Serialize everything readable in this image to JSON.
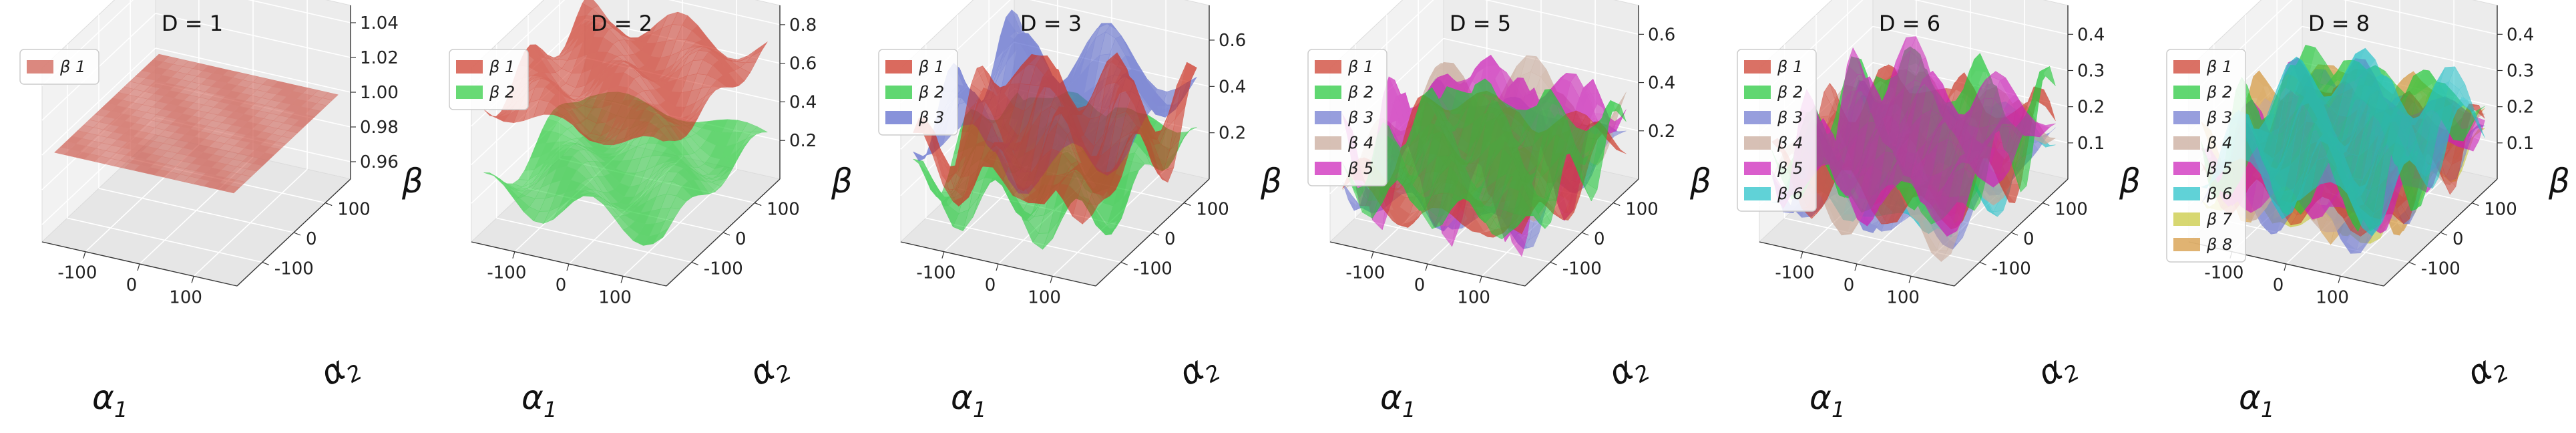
{
  "chart_data": [
    {
      "type": "surface3d",
      "title": "D = 1",
      "xlabel": "α",
      "xlabel_sub": "1",
      "ylabel": "α",
      "ylabel_sub": "2",
      "zlabel": "β",
      "xlim": [
        -180,
        180
      ],
      "ylim": [
        -180,
        180
      ],
      "zlim": [
        0.95,
        1.05
      ],
      "x_ticks": [
        -100,
        0,
        100
      ],
      "y_ticks": [
        -100,
        0,
        100
      ],
      "z_ticks": [
        0.96,
        0.98,
        1.0,
        1.02,
        1.04
      ],
      "z_tick_labels": [
        "0.96",
        "0.98",
        "1.00",
        "1.02",
        "1.04"
      ],
      "legend_position": "top-left",
      "series": [
        {
          "name": "β 1",
          "base": 1.0,
          "amp": 0.0,
          "color": "#cd5a4e",
          "fx": 0,
          "fy": 0,
          "phase": 0
        }
      ]
    },
    {
      "type": "surface3d",
      "title": "D = 2",
      "xlabel": "α",
      "xlabel_sub": "1",
      "ylabel": "α",
      "ylabel_sub": "2",
      "zlabel": "β",
      "xlim": [
        -180,
        180
      ],
      "ylim": [
        -180,
        180
      ],
      "zlim": [
        0.0,
        0.9
      ],
      "x_ticks": [
        -100,
        0,
        100
      ],
      "y_ticks": [
        -100,
        0,
        100
      ],
      "z_ticks": [
        0.2,
        0.4,
        0.6,
        0.8
      ],
      "z_tick_labels": [
        "0.2",
        "0.4",
        "0.6",
        "0.8"
      ],
      "legend_position": "top-left",
      "series": [
        {
          "name": "β 2",
          "base": 0.25,
          "amp": 0.12,
          "color": "#2ecc40",
          "fx": 2.0,
          "fy": 1.5,
          "phase": 0.6
        },
        {
          "name": "β 1",
          "base": 0.68,
          "amp": 0.12,
          "color": "#cd3a2a",
          "fx": 1.8,
          "fy": 2.2,
          "phase": 1.7
        }
      ]
    },
    {
      "type": "surface3d",
      "title": "D = 3",
      "xlabel": "α",
      "xlabel_sub": "1",
      "ylabel": "α",
      "ylabel_sub": "2",
      "zlabel": "β",
      "xlim": [
        -180,
        180
      ],
      "ylim": [
        -180,
        180
      ],
      "zlim": [
        0.0,
        0.75
      ],
      "x_ticks": [
        -100,
        0,
        100
      ],
      "y_ticks": [
        -100,
        0,
        100
      ],
      "z_ticks": [
        0.2,
        0.4,
        0.6
      ],
      "z_tick_labels": [
        "0.2",
        "0.4",
        "0.6"
      ],
      "legend_position": "top-left",
      "series": [
        {
          "name": "β 2",
          "base": 0.22,
          "amp": 0.16,
          "color": "#22c83a",
          "fx": 2.5,
          "fy": 2.0,
          "phase": 0.3
        },
        {
          "name": "β 3",
          "base": 0.45,
          "amp": 0.2,
          "color": "#5a68cc",
          "fx": 1.6,
          "fy": 2.4,
          "phase": 2.1
        },
        {
          "name": "β 1",
          "base": 0.32,
          "amp": 0.22,
          "color": "#cc3020",
          "fx": 2.8,
          "fy": 1.9,
          "phase": 4.0
        }
      ]
    },
    {
      "type": "surface3d",
      "title": "D = 5",
      "xlabel": "α",
      "xlabel_sub": "1",
      "ylabel": "α",
      "ylabel_sub": "2",
      "zlabel": "β",
      "xlim": [
        -180,
        180
      ],
      "ylim": [
        -180,
        180
      ],
      "zlim": [
        0.0,
        0.72
      ],
      "x_ticks": [
        -100,
        0,
        100
      ],
      "y_ticks": [
        -100,
        0,
        100
      ],
      "z_ticks": [
        0.2,
        0.4,
        0.6
      ],
      "z_tick_labels": [
        "0.2",
        "0.4",
        "0.6"
      ],
      "legend_position": "top-left",
      "series": [
        {
          "name": "β 3",
          "base": 0.2,
          "amp": 0.14,
          "color": "#6f78d0",
          "fx": 2.2,
          "fy": 2.6,
          "phase": 1.2
        },
        {
          "name": "β 4",
          "base": 0.28,
          "amp": 0.18,
          "color": "#c8a898",
          "fx": 1.7,
          "fy": 2.1,
          "phase": 2.6
        },
        {
          "name": "β 5",
          "base": 0.3,
          "amp": 0.28,
          "color": "#cc20b8",
          "fx": 2.9,
          "fy": 2.3,
          "phase": 0.4
        },
        {
          "name": "β 1",
          "base": 0.18,
          "amp": 0.14,
          "color": "#cc3a2a",
          "fx": 2.4,
          "fy": 1.8,
          "phase": 3.5
        },
        {
          "name": "β 2",
          "base": 0.22,
          "amp": 0.17,
          "color": "#22c83a",
          "fx": 3.1,
          "fy": 2.7,
          "phase": 5.0
        }
      ]
    },
    {
      "type": "surface3d",
      "title": "D = 6",
      "xlabel": "α",
      "xlabel_sub": "1",
      "ylabel": "α",
      "ylabel_sub": "2",
      "zlabel": "β",
      "xlim": [
        -180,
        180
      ],
      "ylim": [
        -180,
        180
      ],
      "zlim": [
        0.0,
        0.48
      ],
      "x_ticks": [
        -100,
        0,
        100
      ],
      "y_ticks": [
        -100,
        0,
        100
      ],
      "z_ticks": [
        0.1,
        0.2,
        0.3,
        0.4
      ],
      "z_tick_labels": [
        "0.1",
        "0.2",
        "0.3",
        "0.4"
      ],
      "legend_position": "top-left",
      "series": [
        {
          "name": "β 3",
          "base": 0.13,
          "amp": 0.1,
          "color": "#6f78d0",
          "fx": 2.3,
          "fy": 2.8,
          "phase": 0.9
        },
        {
          "name": "β 6",
          "base": 0.14,
          "amp": 0.1,
          "color": "#22c0c8",
          "fx": 2.6,
          "fy": 2.0,
          "phase": 2.2
        },
        {
          "name": "β 4",
          "base": 0.16,
          "amp": 0.12,
          "color": "#c8a898",
          "fx": 1.9,
          "fy": 2.5,
          "phase": 3.3
        },
        {
          "name": "β 1",
          "base": 0.17,
          "amp": 0.13,
          "color": "#cc3a2a",
          "fx": 2.7,
          "fy": 2.2,
          "phase": 4.4
        },
        {
          "name": "β 2",
          "base": 0.2,
          "amp": 0.15,
          "color": "#22c83a",
          "fx": 3.0,
          "fy": 2.6,
          "phase": 5.5
        },
        {
          "name": "β 5",
          "base": 0.19,
          "amp": 0.14,
          "color": "#cc20b8",
          "fx": 2.1,
          "fy": 3.0,
          "phase": 1.4
        }
      ]
    },
    {
      "type": "surface3d",
      "title": "D = 8",
      "xlabel": "α",
      "xlabel_sub": "1",
      "ylabel": "α",
      "ylabel_sub": "2",
      "zlabel": "β",
      "xlim": [
        -180,
        180
      ],
      "ylim": [
        -180,
        180
      ],
      "zlim": [
        0.0,
        0.48
      ],
      "x_ticks": [
        -100,
        0,
        100
      ],
      "y_ticks": [
        -100,
        0,
        100
      ],
      "z_ticks": [
        0.1,
        0.2,
        0.3,
        0.4
      ],
      "z_tick_labels": [
        "0.1",
        "0.2",
        "0.3",
        "0.4"
      ],
      "legend_position": "top-left",
      "series": [
        {
          "name": "β 8",
          "base": 0.2,
          "amp": 0.16,
          "color": "#d4963c",
          "fx": 2.4,
          "fy": 2.0,
          "phase": 0.5
        },
        {
          "name": "β 7",
          "base": 0.12,
          "amp": 0.08,
          "color": "#c8c83a",
          "fx": 2.9,
          "fy": 2.4,
          "phase": 1.6
        },
        {
          "name": "β 3",
          "base": 0.13,
          "amp": 0.09,
          "color": "#6f78d0",
          "fx": 2.2,
          "fy": 2.9,
          "phase": 2.7
        },
        {
          "name": "β 4",
          "base": 0.14,
          "amp": 0.09,
          "color": "#c8a898",
          "fx": 2.6,
          "fy": 2.2,
          "phase": 3.8
        },
        {
          "name": "β 1",
          "base": 0.15,
          "amp": 0.1,
          "color": "#cc3a2a",
          "fx": 3.1,
          "fy": 2.7,
          "phase": 4.9
        },
        {
          "name": "β 5",
          "base": 0.17,
          "amp": 0.12,
          "color": "#cc20b8",
          "fx": 2.0,
          "fy": 3.1,
          "phase": 0.2
        },
        {
          "name": "β 2",
          "base": 0.22,
          "amp": 0.16,
          "color": "#22c83a",
          "fx": 2.8,
          "fy": 2.5,
          "phase": 1.1
        },
        {
          "name": "β 6",
          "base": 0.2,
          "amp": 0.14,
          "color": "#22c0c8",
          "fx": 2.3,
          "fy": 2.1,
          "phase": 2.3
        }
      ]
    }
  ]
}
